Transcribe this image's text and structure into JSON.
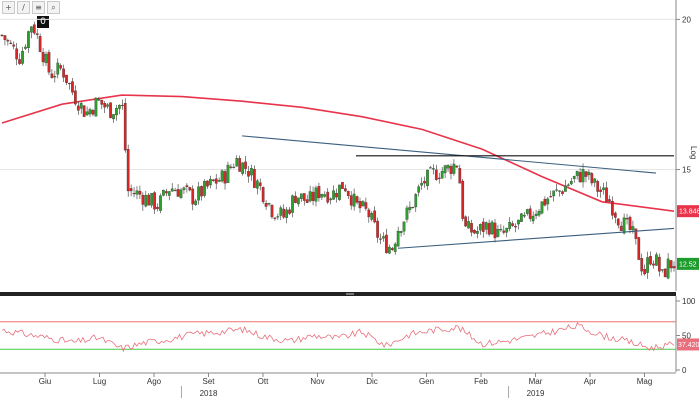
{
  "toolbar": {
    "icons": [
      "plus-icon",
      "pen-icon",
      "align-icon",
      "zoom-icon"
    ],
    "glyphs": [
      "+",
      "/",
      "≡",
      "⌕"
    ],
    "badge": "0"
  },
  "colors": {
    "up": "#2ca02c",
    "down": "#d62728",
    "ma": "#e8344b",
    "trend": "#3a5f7f",
    "resistance": "#111111",
    "rsi": "#e8707d",
    "rsi_upper": "#f07070",
    "rsi_lower": "#44cc44"
  },
  "chart_data": [
    {
      "type": "candlestick",
      "scale": "log",
      "ylabel": "Log",
      "ylim": [
        12.0,
        20.6
      ],
      "yticks": [
        15,
        20
      ],
      "x_months": [
        "Giu",
        "Lug",
        "Ago",
        "Set",
        "Ott",
        "Nov",
        "Dic",
        "Gen",
        "Feb",
        "Mar",
        "Apr",
        "Mag"
      ],
      "year_labels": [
        {
          "label": "2018",
          "month": "Set"
        },
        {
          "label": "2019",
          "month": "Mar"
        }
      ],
      "price_tags": [
        {
          "label": "13.8464",
          "value": 13.85,
          "bg": "#e8344b",
          "fg": "#ffffff"
        },
        {
          "label": "12.52",
          "value": 12.52,
          "bg": "#1f9c2e",
          "fg": "#ffffff"
        }
      ],
      "close_path": [
        [
          0,
          19.4
        ],
        [
          3,
          18.6
        ],
        [
          5,
          19.9
        ],
        [
          8,
          18.0
        ],
        [
          10,
          18.2
        ],
        [
          12,
          17.3
        ],
        [
          14,
          16.7
        ],
        [
          16,
          17.1
        ],
        [
          18,
          16.8
        ],
        [
          20,
          17.0
        ],
        [
          21,
          14.4
        ],
        [
          23,
          14.3
        ],
        [
          26,
          14.0
        ],
        [
          28,
          14.5
        ],
        [
          30,
          14.4
        ],
        [
          32,
          14.2
        ],
        [
          35,
          14.6
        ],
        [
          37,
          14.8
        ],
        [
          39,
          15.3
        ],
        [
          41,
          15.0
        ],
        [
          43,
          14.5
        ],
        [
          45,
          13.9
        ],
        [
          47,
          13.7
        ],
        [
          49,
          14.3
        ],
        [
          51,
          14.1
        ],
        [
          53,
          14.4
        ],
        [
          55,
          14.3
        ],
        [
          57,
          14.6
        ],
        [
          59,
          14.0
        ],
        [
          61,
          13.8
        ],
        [
          63,
          13.1
        ],
        [
          65,
          12.9
        ],
        [
          66,
          13.4
        ],
        [
          68,
          13.9
        ],
        [
          70,
          14.6
        ],
        [
          72,
          14.9
        ],
        [
          74,
          15.0
        ],
        [
          76,
          15.2
        ],
        [
          77,
          13.4
        ],
        [
          79,
          13.3
        ],
        [
          81,
          13.5
        ],
        [
          83,
          13.2
        ],
        [
          85,
          13.4
        ],
        [
          87,
          13.6
        ],
        [
          89,
          13.9
        ],
        [
          91,
          14.2
        ],
        [
          93,
          14.4
        ],
        [
          95,
          14.7
        ],
        [
          97,
          14.9
        ],
        [
          99,
          14.5
        ],
        [
          101,
          14.2
        ],
        [
          103,
          13.6
        ],
        [
          105,
          13.3
        ],
        [
          107,
          12.3
        ],
        [
          108,
          12.7
        ],
        [
          109,
          12.6
        ],
        [
          110,
          12.2
        ],
        [
          111,
          12.5
        ],
        [
          112,
          12.52
        ]
      ],
      "moving_average": [
        [
          0,
          16.4
        ],
        [
          10,
          17.0
        ],
        [
          20,
          17.3
        ],
        [
          30,
          17.25
        ],
        [
          40,
          17.1
        ],
        [
          50,
          16.9
        ],
        [
          60,
          16.6
        ],
        [
          70,
          16.2
        ],
        [
          80,
          15.6
        ],
        [
          90,
          14.8
        ],
        [
          100,
          14.1
        ],
        [
          112,
          13.85
        ]
      ],
      "trendlines": [
        {
          "kind": "trend",
          "points": [
            [
              40,
              16.0
            ],
            [
              109,
              14.9
            ]
          ]
        },
        {
          "kind": "trend",
          "points": [
            [
              66,
              12.9
            ],
            [
              112,
              13.4
            ]
          ]
        },
        {
          "kind": "resistance",
          "points": [
            [
              59,
              15.4
            ],
            [
              112,
              15.4
            ]
          ]
        }
      ]
    },
    {
      "type": "line",
      "indicator": "RSI",
      "ylim": [
        0,
        100
      ],
      "yticks": [
        0,
        50,
        100
      ],
      "levels": [
        70,
        30
      ],
      "last_label": "37.4207",
      "x": [
        0,
        4,
        8,
        12,
        16,
        20,
        24,
        28,
        32,
        36,
        40,
        44,
        48,
        52,
        56,
        60,
        64,
        68,
        72,
        76,
        80,
        84,
        88,
        92,
        96,
        100,
        104,
        108,
        112
      ],
      "values": [
        58,
        52,
        46,
        40,
        47,
        31,
        40,
        45,
        52,
        55,
        59,
        48,
        42,
        50,
        46,
        55,
        35,
        52,
        58,
        62,
        38,
        42,
        48,
        56,
        64,
        50,
        42,
        32,
        37
      ]
    }
  ]
}
